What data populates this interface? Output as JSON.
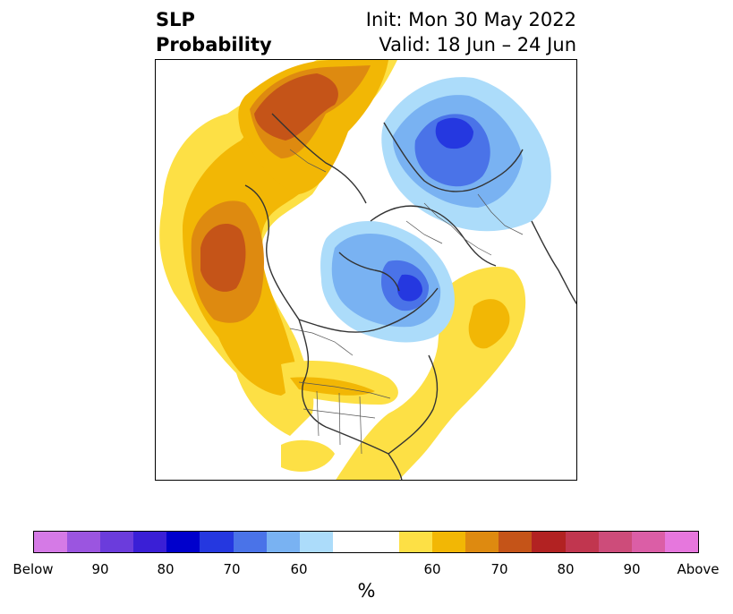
{
  "title": {
    "left_line1": "SLP",
    "left_line2": "Probability",
    "right_line1": "Init: Mon 30 May 2022",
    "right_line2": "Valid: 18 Jun – 24 Jun"
  },
  "map": {
    "projection": "north-polar-stereographic",
    "features": [
      "coastlines",
      "country-borders",
      "us-state-borders",
      "canada-province-borders"
    ],
    "below_normal_centers": [
      "Scandinavia / Northern Europe",
      "Arctic Ocean north of Greenland",
      "Canadian Arctic Archipelago"
    ],
    "above_normal_centers": [
      "Western Russia",
      "North Pacific",
      "North Atlantic",
      "Northern United States / Southern Canada"
    ]
  },
  "colorbar": {
    "unit": "%",
    "colors": [
      "#d57ae6",
      "#9b55e0",
      "#6b3cdc",
      "#3a1fd6",
      "#0000cc",
      "#2538e0",
      "#4a73e8",
      "#79b2f2",
      "#acdcfa",
      "#ffffff",
      "#fde045",
      "#f2b705",
      "#de8a10",
      "#c55418",
      "#b22222",
      "#c1364f",
      "#cd4c7a",
      "#db5ea6",
      "#e677dd"
    ],
    "tick_labels": [
      "Below",
      "90",
      "80",
      "70",
      "60",
      "60",
      "70",
      "80",
      "90",
      "Above"
    ]
  }
}
